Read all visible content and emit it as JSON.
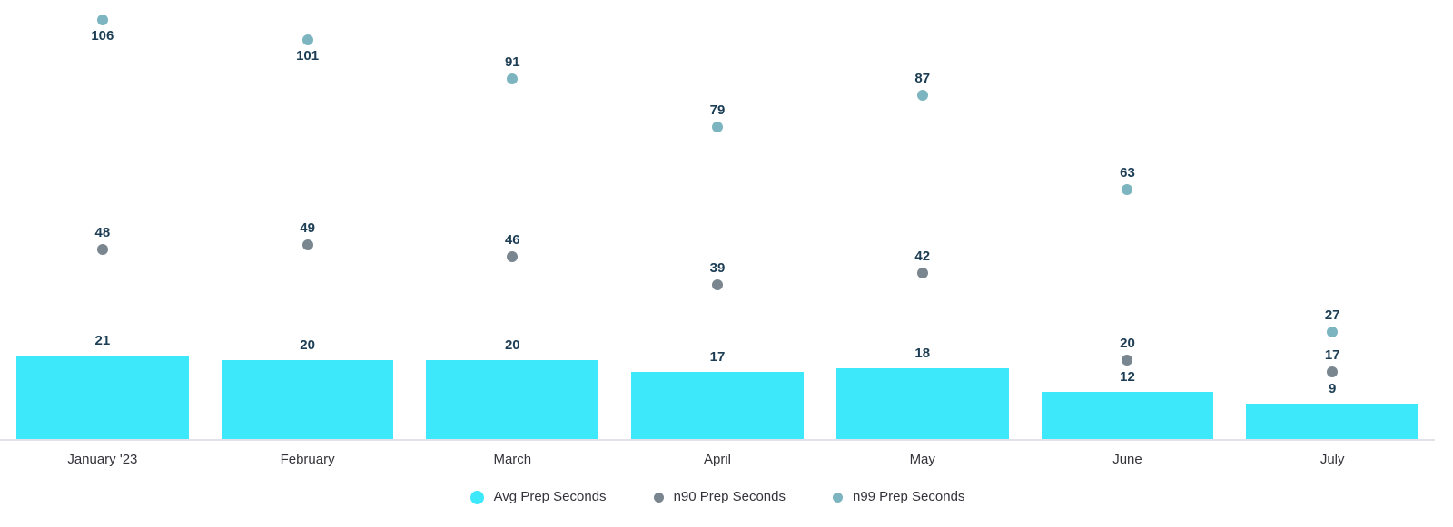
{
  "chart_data": {
    "type": "bar",
    "title": "",
    "xlabel": "",
    "ylabel": "",
    "categories": [
      "January '23",
      "February",
      "March",
      "April",
      "May",
      "June",
      "July"
    ],
    "series": [
      {
        "name": "Avg Prep Seconds",
        "render": "bar",
        "color": "#3EE8FB",
        "values": [
          21,
          20,
          20,
          17,
          18,
          12,
          9
        ]
      },
      {
        "name": "n90 Prep Seconds",
        "render": "point",
        "color": "#79858F",
        "values": [
          48,
          49,
          46,
          39,
          42,
          20,
          17
        ]
      },
      {
        "name": "n99 Prep Seconds",
        "render": "point",
        "color": "#7CB5BF",
        "values": [
          106,
          101,
          91,
          79,
          87,
          63,
          27
        ],
        "labels_below_point": [
          "January '23",
          "February"
        ]
      }
    ],
    "ylim": [
      0,
      111
    ],
    "grid": false,
    "axes_shown": false,
    "legend_position": "bottom",
    "value_labels_shown": true,
    "colors": {
      "value_label": "#1C3D54",
      "axis_text": "#33333B",
      "baseline": "#E2E2EC",
      "background": "#FFFFFF"
    }
  }
}
